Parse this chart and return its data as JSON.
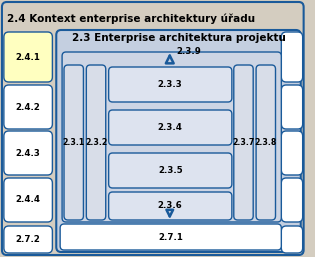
{
  "outer_title": "2.4 Kontext enterprise architektury úřadu",
  "inner_title": "2.3 Enterprise architektura projektu",
  "outer_bg": "#d4cdc0",
  "inner_bg": "#c4cfe0",
  "box_yellow_color": "#ffffc0",
  "box_white_color": "#ffffff",
  "box_gray_color": "#d8dde8",
  "row_box_color": "#dde3ef",
  "box_border_color": "#1a5a9a",
  "title_fontsize": 7.5,
  "inner_title_fontsize": 7.5,
  "label_fontsize": 6.2,
  "left_boxes": [
    {
      "label": "2.4.1",
      "color": "#ffffc0"
    },
    {
      "label": "2.4.2",
      "color": "#ffffff"
    },
    {
      "label": "2.4.3",
      "color": "#ffffff"
    },
    {
      "label": "2.4.4",
      "color": "#ffffff"
    },
    {
      "label": "2.7.2",
      "color": "#ffffff"
    }
  ],
  "col_labels": [
    "2.3.1",
    "2.3.2",
    "2.3.7",
    "2.3.8"
  ],
  "row_labels": [
    "2.3.3",
    "2.3.4",
    "2.3.5",
    "2.3.6"
  ],
  "bottom_box_label": "2.7.1",
  "arrow_label": "2.3.9"
}
